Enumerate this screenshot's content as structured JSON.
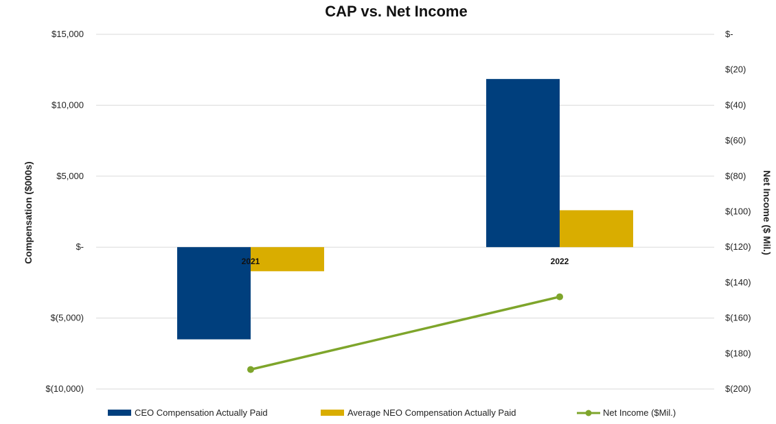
{
  "chart_data": {
    "type": "bar",
    "title": "CAP vs. Net Income",
    "categories": [
      "2021",
      "2022"
    ],
    "ylabel": "Compensation ($000s)",
    "y2label": "Net Income ($ Mil.)",
    "ylim": [
      -10000,
      15000
    ],
    "y2lim": [
      -200,
      0
    ],
    "yticks": [
      15000,
      10000,
      5000,
      0,
      -5000,
      -10000
    ],
    "yticklabels": [
      "$15,000",
      "$10,000",
      "$5,000",
      "$-",
      "$(5,000)",
      "$(10,000)"
    ],
    "y2ticks": [
      0,
      -20,
      -40,
      -60,
      -80,
      -100,
      -120,
      -140,
      -160,
      -180,
      -200
    ],
    "y2ticklabels": [
      "$-",
      "$(20)",
      "$(40)",
      "$(60)",
      "$(80)",
      "$(100)",
      "$(120)",
      "$(140)",
      "$(160)",
      "$(180)",
      "$(200)"
    ],
    "grid": true,
    "legend_position": "bottom",
    "series": [
      {
        "name": "CEO Compensation Actually Paid",
        "type": "bar",
        "axis": "left",
        "color": "#003f7d",
        "values": [
          -6500,
          11850
        ]
      },
      {
        "name": "Average NEO Compensation Actually Paid",
        "type": "bar",
        "axis": "left",
        "color": "#d9ad00",
        "values": [
          -1700,
          2600
        ]
      },
      {
        "name": "Net Income ($Mil.)",
        "type": "line",
        "axis": "right",
        "color": "#7ea52b",
        "values": [
          -189,
          -148
        ]
      }
    ]
  }
}
